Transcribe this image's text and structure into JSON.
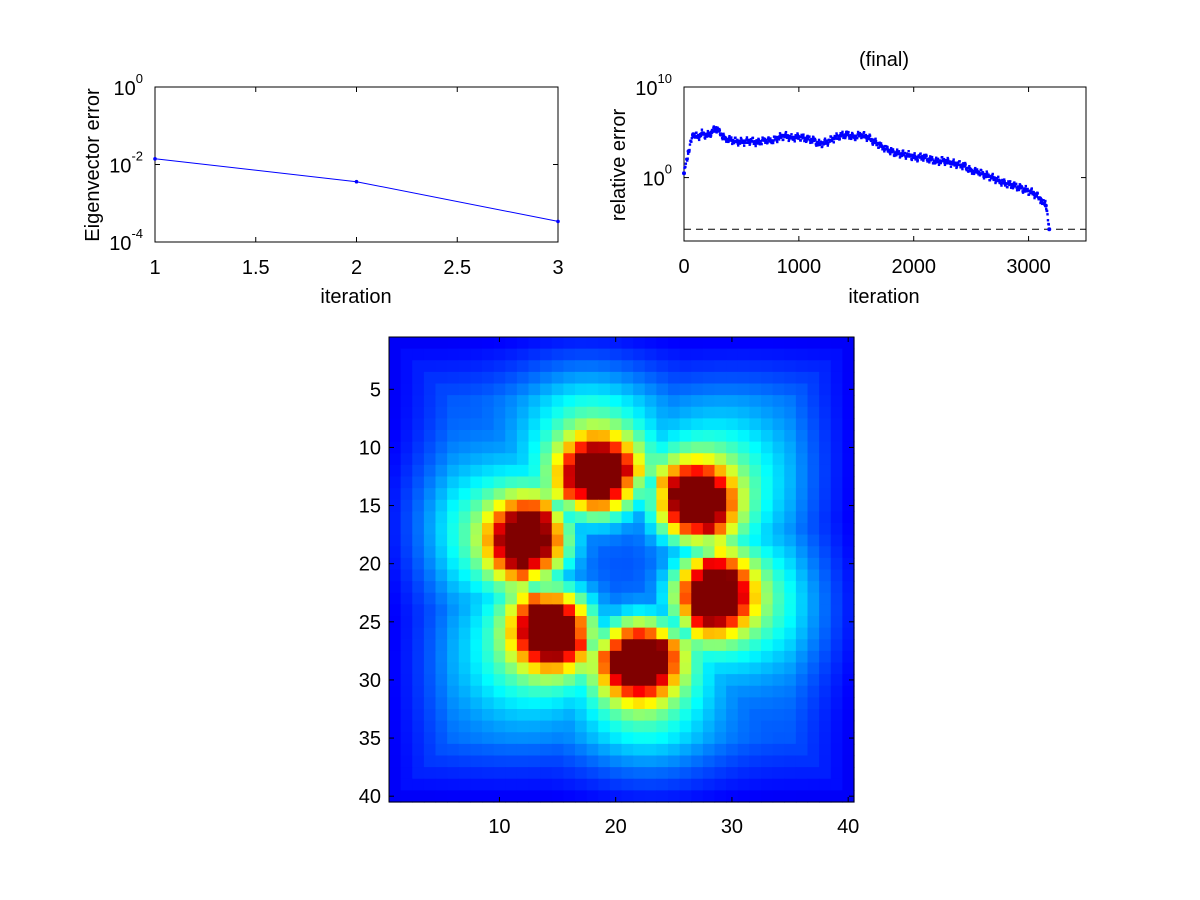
{
  "chart_data": [
    {
      "type": "line",
      "title": "",
      "xlabel": "iteration",
      "ylabel": "Eigenvector error",
      "yscale": "log",
      "xlim": [
        1,
        3
      ],
      "ylim": [
        0.0001,
        1
      ],
      "grid": false,
      "x_ticks": [
        1,
        1.5,
        2,
        2.5,
        3
      ],
      "x_tick_labels": [
        "1",
        "1.5",
        "2",
        "2.5",
        "3"
      ],
      "y_ticks": [
        0.0001,
        0.01,
        1
      ],
      "y_tick_labels": [
        {
          "base": "10",
          "exp": "-4"
        },
        {
          "base": "10",
          "exp": "-2"
        },
        {
          "base": "10",
          "exp": "0"
        }
      ],
      "series": [
        {
          "x": [
            1,
            2,
            3
          ],
          "y": [
            0.014,
            0.0036,
            0.00034
          ],
          "color": "#0000ff",
          "marker": "dot"
        }
      ]
    },
    {
      "type": "scatter",
      "title": "(final)",
      "xlabel": "iteration",
      "ylabel": "relative error",
      "yscale": "log",
      "xlim": [
        0,
        3500
      ],
      "ylim": [
        1e-07,
        10000000000.0
      ],
      "grid": false,
      "x_ticks": [
        0,
        1000,
        2000,
        3000
      ],
      "x_tick_labels": [
        "0",
        "1000",
        "2000",
        "3000"
      ],
      "y_ticks": [
        1,
        10000000000.0
      ],
      "y_tick_labels": [
        {
          "base": "10",
          "exp": "0"
        },
        {
          "base": "10",
          "exp": "10"
        }
      ],
      "reference_line": {
        "y": 2e-06,
        "style": "dashed",
        "color": "#000000"
      },
      "series": [
        {
          "color": "#0000ff",
          "marker": "dot",
          "x": [
            0,
            40,
            80,
            120,
            160,
            200,
            240,
            280,
            320,
            360,
            400,
            460,
            520,
            580,
            640,
            700,
            760,
            820,
            880,
            940,
            1000,
            1060,
            1120,
            1180,
            1240,
            1300,
            1360,
            1420,
            1480,
            1540,
            1600,
            1660,
            1720,
            1780,
            1840,
            1900,
            1960,
            2020,
            2080,
            2140,
            2200,
            2260,
            2320,
            2380,
            2440,
            2500,
            2560,
            2620,
            2680,
            2740,
            2800,
            2860,
            2920,
            2980,
            3040,
            3100,
            3150,
            3180
          ],
          "y": [
            3,
            800,
            60000,
            30000,
            80000,
            40000,
            100000,
            300000,
            60000,
            20000,
            15000,
            10000,
            8000,
            12000,
            7000,
            15000,
            10000,
            25000,
            40000,
            25000,
            30000,
            20000,
            15000,
            5000,
            8000,
            20000,
            40000,
            60000,
            30000,
            50000,
            30000,
            8000,
            3000,
            1000,
            500,
            400,
            300,
            150,
            200,
            100,
            60,
            80,
            40,
            30,
            20,
            6,
            4,
            2,
            1,
            0.5,
            0.2,
            0.15,
            0.08,
            0.04,
            0.02,
            0.005,
            0.0008,
            2e-06
          ]
        }
      ]
    },
    {
      "type": "heatmap",
      "title": "",
      "xlabel": "",
      "ylabel": "",
      "colormap": "jet",
      "size": [
        40,
        40
      ],
      "x_ticks": [
        10,
        20,
        30,
        40
      ],
      "x_tick_labels": [
        "10",
        "20",
        "30",
        "40"
      ],
      "y_ticks": [
        5,
        10,
        15,
        20,
        25,
        30,
        35,
        40
      ],
      "y_tick_labels": [
        "5",
        "10",
        "15",
        "20",
        "25",
        "30",
        "35",
        "40"
      ],
      "peaks": [
        {
          "row": 12.5,
          "col": 18.5
        },
        {
          "row": 14.8,
          "col": 26.8
        },
        {
          "row": 18.0,
          "col": 12.5
        },
        {
          "row": 22.6,
          "col": 28.3
        },
        {
          "row": 25.6,
          "col": 14.6
        },
        {
          "row": 28.2,
          "col": 22.0
        }
      ]
    }
  ]
}
